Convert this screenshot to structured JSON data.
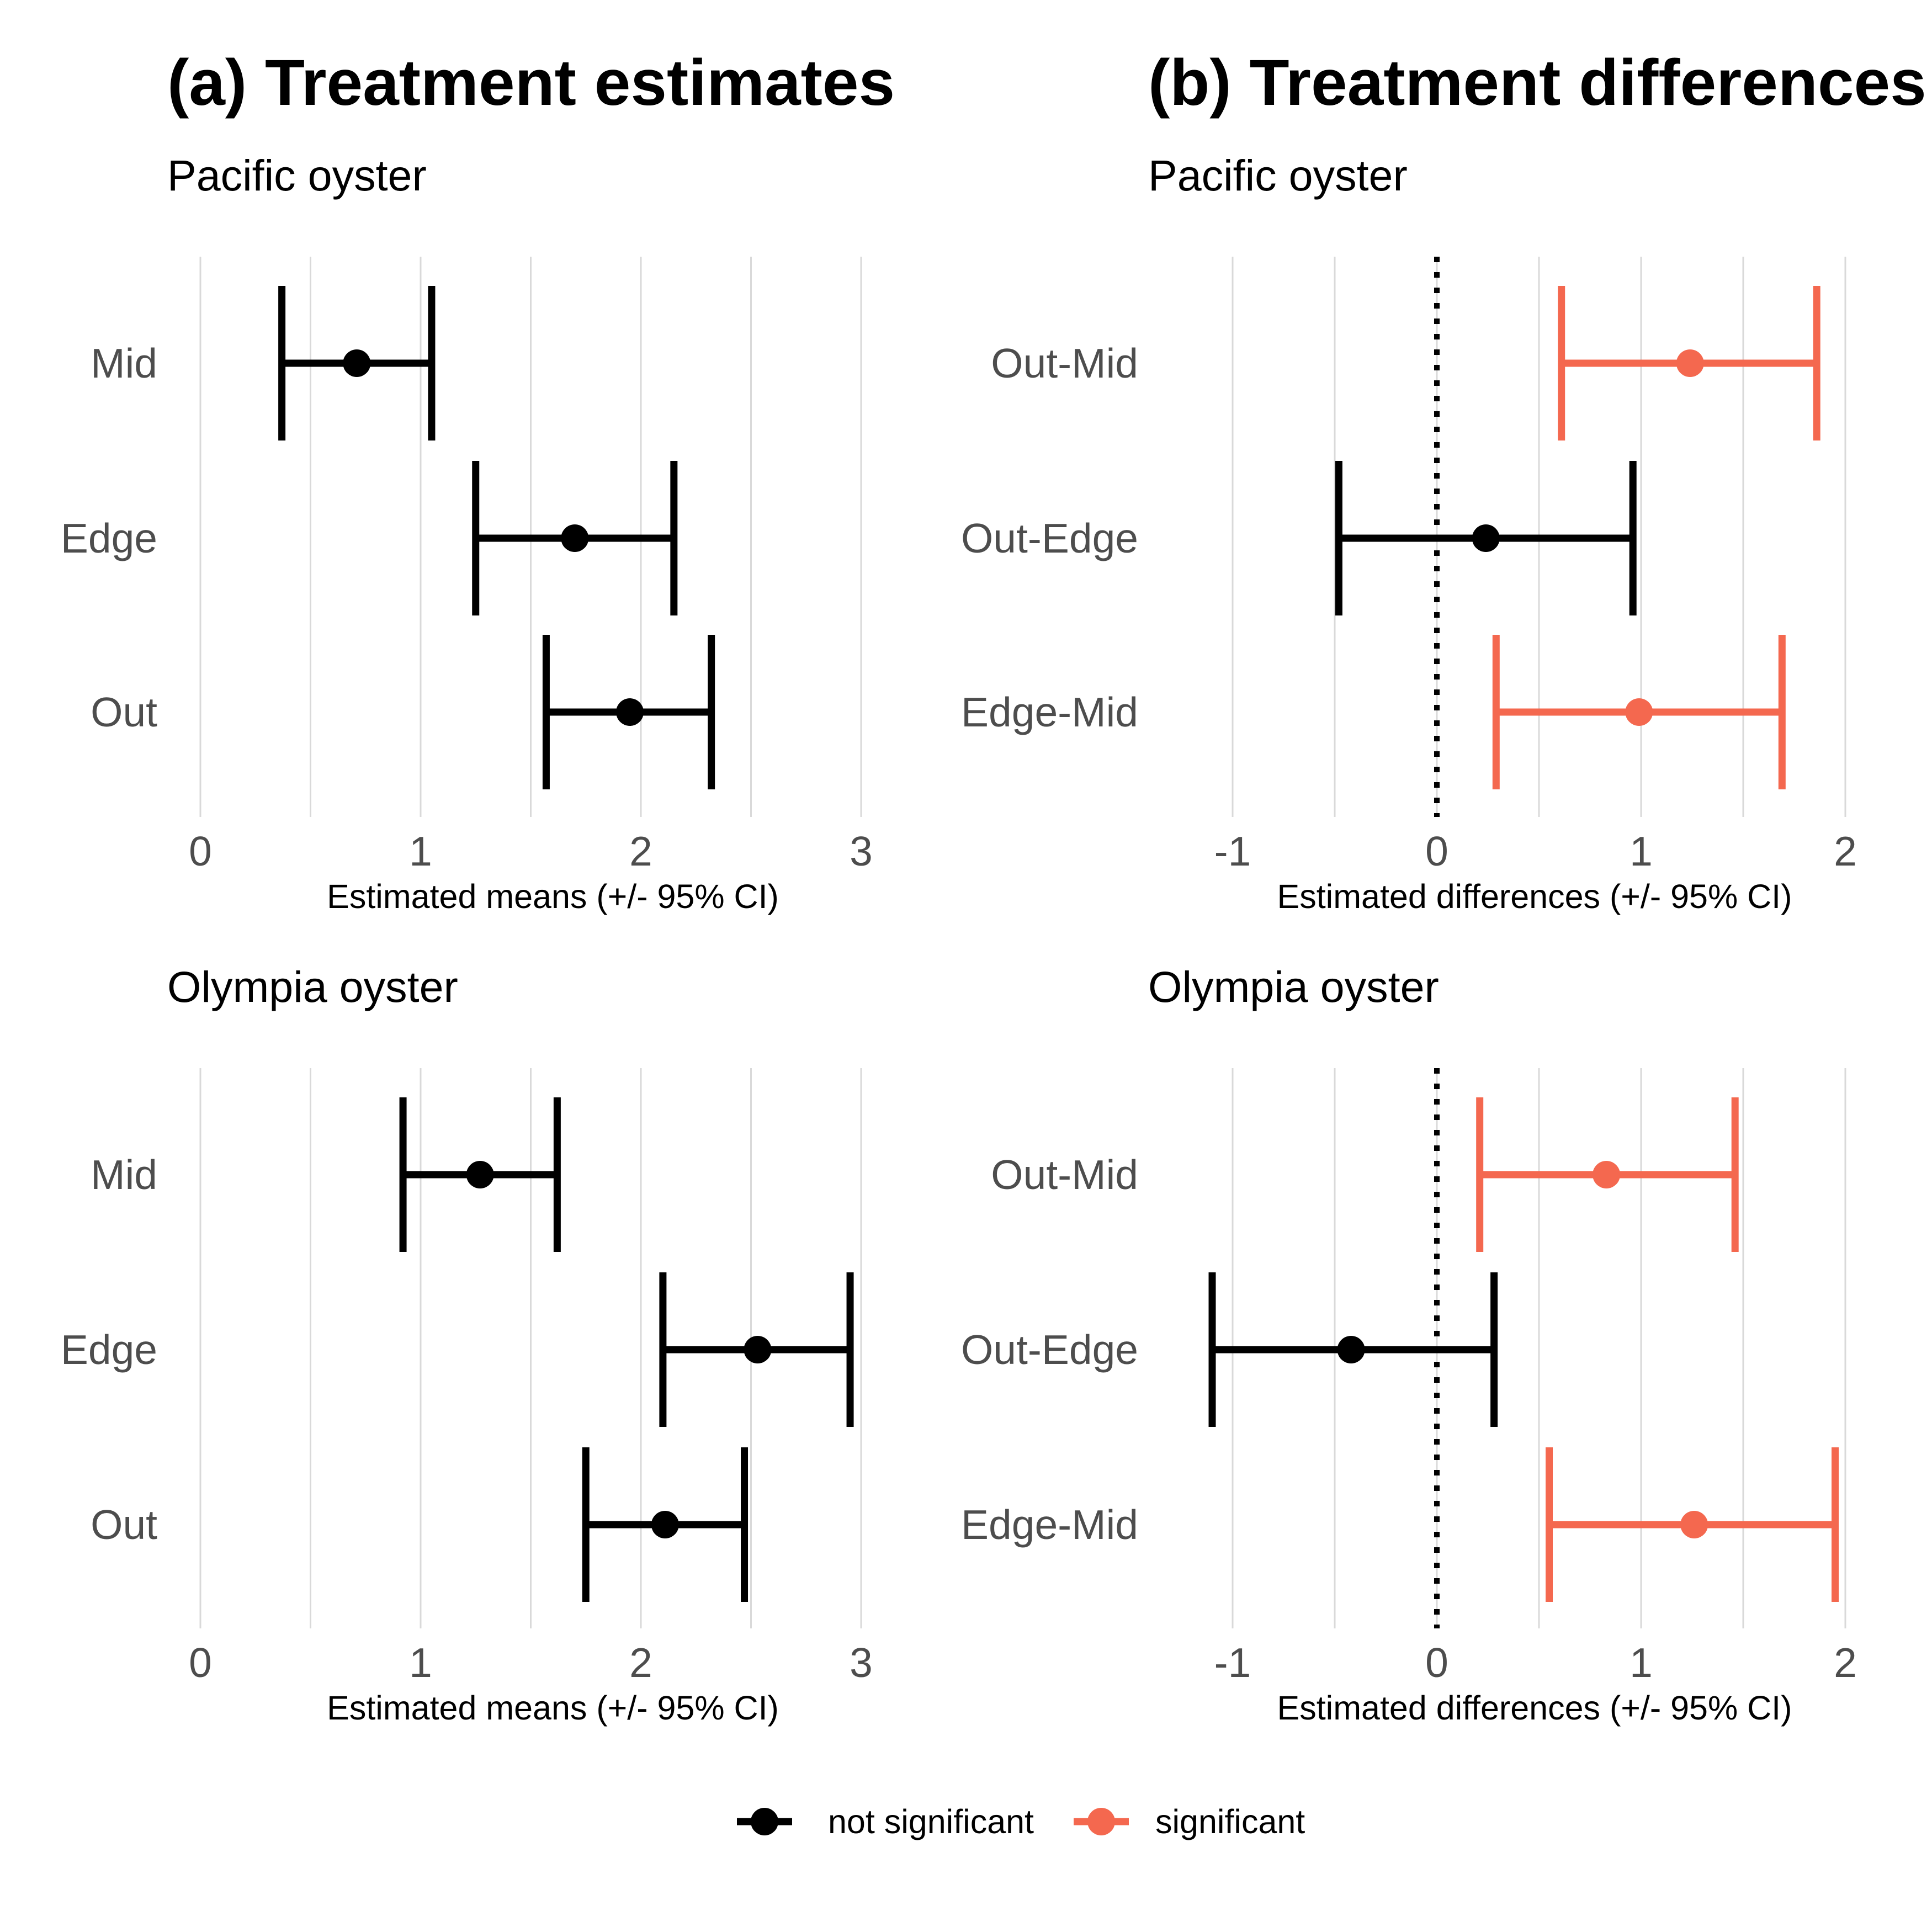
{
  "colors": {
    "not_significant": "#000000",
    "significant": "#f4684f",
    "grid": "#d9d9d9",
    "zero_line": "#000000"
  },
  "columns": [
    {
      "title": "(a) Treatment estimates"
    },
    {
      "title": "(b) Treatment differences"
    }
  ],
  "legend": {
    "items": [
      {
        "key": "not_significant",
        "label": "not significant"
      },
      {
        "key": "significant",
        "label": "significant"
      }
    ],
    "placement": "bottom"
  },
  "chart_data": [
    {
      "type": "errorbar",
      "subtitle": "Pacific oyster",
      "xlabel": "Estimated means (+/- 95% CI)",
      "xlim": [
        -0.05,
        3.0
      ],
      "xticks": [
        0,
        1,
        2,
        3
      ],
      "minor_xticks": [
        0.5,
        1.5,
        2.5
      ],
      "zero_line": false,
      "categories": [
        "Mid",
        "Edge",
        "Out"
      ],
      "points": [
        {
          "label": "Mid",
          "estimate": 0.71,
          "lower": 0.37,
          "upper": 1.05,
          "significant": false
        },
        {
          "label": "Edge",
          "estimate": 1.7,
          "lower": 1.25,
          "upper": 2.15,
          "significant": false
        },
        {
          "label": "Out",
          "estimate": 1.95,
          "lower": 1.57,
          "upper": 2.32,
          "significant": false
        }
      ]
    },
    {
      "type": "errorbar",
      "subtitle": "Pacific oyster",
      "xlabel": "Estimated differences (+/- 95% CI)",
      "xlim": [
        -1.1,
        2.1
      ],
      "xticks": [
        -1,
        0,
        1,
        2
      ],
      "minor_xticks": [
        -0.5,
        0.5,
        1.5
      ],
      "zero_line": true,
      "categories": [
        "Out-Mid",
        "Out-Edge",
        "Edge-Mid"
      ],
      "points": [
        {
          "label": "Out-Mid",
          "estimate": 1.24,
          "lower": 0.61,
          "upper": 1.86,
          "significant": true
        },
        {
          "label": "Out-Edge",
          "estimate": 0.24,
          "lower": -0.48,
          "upper": 0.96,
          "significant": false
        },
        {
          "label": "Edge-Mid",
          "estimate": 0.99,
          "lower": 0.29,
          "upper": 1.69,
          "significant": true
        }
      ]
    },
    {
      "type": "errorbar",
      "subtitle": "Olympia oyster",
      "xlabel": "Estimated means (+/- 95% CI)",
      "xlim": [
        -0.05,
        3.0
      ],
      "xticks": [
        0,
        1,
        2,
        3
      ],
      "minor_xticks": [
        0.5,
        1.5,
        2.5
      ],
      "zero_line": false,
      "categories": [
        "Mid",
        "Edge",
        "Out"
      ],
      "points": [
        {
          "label": "Mid",
          "estimate": 1.27,
          "lower": 0.92,
          "upper": 1.62,
          "significant": false
        },
        {
          "label": "Edge",
          "estimate": 2.53,
          "lower": 2.1,
          "upper": 2.95,
          "significant": false
        },
        {
          "label": "Out",
          "estimate": 2.11,
          "lower": 1.75,
          "upper": 2.47,
          "significant": false
        }
      ]
    },
    {
      "type": "errorbar",
      "subtitle": "Olympia oyster",
      "xlabel": "Estimated differences (+/- 95% CI)",
      "xlim": [
        -1.1,
        2.1
      ],
      "xticks": [
        -1,
        0,
        1,
        2
      ],
      "minor_xticks": [
        -0.5,
        0.5,
        1.5
      ],
      "zero_line": true,
      "categories": [
        "Out-Mid",
        "Out-Edge",
        "Edge-Mid"
      ],
      "points": [
        {
          "label": "Out-Mid",
          "estimate": 0.83,
          "lower": 0.21,
          "upper": 1.46,
          "significant": true
        },
        {
          "label": "Out-Edge",
          "estimate": -0.42,
          "lower": -1.1,
          "upper": 0.28,
          "significant": false
        },
        {
          "label": "Edge-Mid",
          "estimate": 1.26,
          "lower": 0.55,
          "upper": 1.95,
          "significant": true
        }
      ]
    }
  ]
}
